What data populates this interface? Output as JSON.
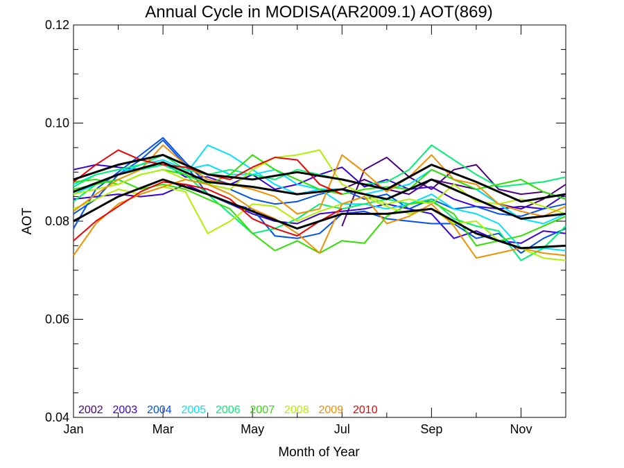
{
  "chart_data": {
    "type": "line",
    "title": "Annual Cycle in MODISA(AR2009.1) AOT(869)",
    "xlabel": "Month of Year",
    "ylabel": "AOT",
    "xlim": [
      1,
      12
    ],
    "ylim": [
      0.04,
      0.12
    ],
    "x_ticks": [
      {
        "value": 1,
        "label": "Jan"
      },
      {
        "value": 3,
        "label": "Mar"
      },
      {
        "value": 5,
        "label": "May"
      },
      {
        "value": 7,
        "label": "Jul"
      },
      {
        "value": 9,
        "label": "Sep"
      },
      {
        "value": 11,
        "label": "Nov"
      }
    ],
    "x_minor_ticks": [
      2,
      4,
      6,
      8,
      10,
      12
    ],
    "y_ticks": [
      {
        "value": 0.04,
        "label": "0.04"
      },
      {
        "value": 0.06,
        "label": "0.06"
      },
      {
        "value": 0.08,
        "label": "0.08"
      },
      {
        "value": 0.1,
        "label": "0.10"
      },
      {
        "value": 0.12,
        "label": "0.12"
      }
    ],
    "y_minor_ticks": [
      0.045,
      0.05,
      0.055,
      0.065,
      0.07,
      0.075,
      0.085,
      0.09,
      0.095,
      0.105,
      0.11,
      0.115
    ],
    "legend_position": "bottom-left",
    "series": [
      {
        "name": "2002",
        "color": "#4b0082",
        "x": [
          7,
          7.5,
          8,
          8.5,
          9,
          9.5,
          10,
          10.5,
          11,
          11.5,
          12
        ],
        "y": [
          0.079,
          0.0905,
          0.093,
          0.089,
          0.0865,
          0.0905,
          0.0915,
          0.0865,
          0.0855,
          0.086,
          0.0845
        ]
      },
      {
        "name": "2002",
        "color": "#4b0082",
        "x": [
          7,
          7.5,
          8,
          8.5,
          9,
          9.5,
          10,
          10.5,
          11,
          11.5,
          12
        ],
        "y": [
          0.0865,
          0.0885,
          0.0865,
          0.0855,
          0.0885,
          0.0875,
          0.0865,
          0.0835,
          0.0825,
          0.0845,
          0.0875
        ]
      },
      {
        "name": "2003",
        "color": "#3a00d8",
        "x": [
          1,
          1.5,
          2,
          2.5,
          3,
          3.5,
          4,
          4.5,
          5,
          5.5,
          6,
          6.5,
          7,
          7.5,
          8,
          8.5,
          9,
          9.5,
          10,
          10.5,
          11,
          11.5,
          12
        ],
        "y": [
          0.0905,
          0.0915,
          0.091,
          0.0905,
          0.092,
          0.089,
          0.089,
          0.0875,
          0.0895,
          0.0865,
          0.0875,
          0.0895,
          0.091,
          0.087,
          0.0885,
          0.0865,
          0.087,
          0.0845,
          0.083,
          0.0825,
          0.083,
          0.0825,
          0.0855
        ]
      },
      {
        "name": "2003",
        "color": "#3a00d8",
        "x": [
          1,
          1.5,
          2,
          2.5,
          3,
          3.5,
          4,
          4.5,
          5,
          5.5,
          6,
          6.5,
          7,
          7.5,
          8,
          8.5,
          9,
          9.5,
          10,
          10.5,
          11,
          11.5,
          12
        ],
        "y": [
          0.0845,
          0.085,
          0.0855,
          0.085,
          0.0855,
          0.0875,
          0.0855,
          0.0835,
          0.0815,
          0.08,
          0.0795,
          0.0815,
          0.082,
          0.0825,
          0.0835,
          0.0825,
          0.0815,
          0.0765,
          0.078,
          0.076,
          0.0755,
          0.078,
          0.0775
        ]
      },
      {
        "name": "2004",
        "color": "#0050f0",
        "x": [
          1,
          1.5,
          2,
          2.5,
          3,
          3.5,
          4,
          4.5,
          5,
          5.5,
          6,
          6.5,
          7,
          7.5,
          8,
          8.5,
          9,
          9.5,
          10,
          10.5,
          11,
          11.5,
          12
        ],
        "y": [
          0.0785,
          0.0865,
          0.09,
          0.0935,
          0.097,
          0.092,
          0.0875,
          0.0865,
          0.0845,
          0.0835,
          0.084,
          0.0855,
          0.0865,
          0.0845,
          0.0855,
          0.0825,
          0.0845,
          0.0825,
          0.083,
          0.0815,
          0.081,
          0.0825,
          0.0835
        ]
      },
      {
        "name": "2004",
        "color": "#0050f0",
        "x": [
          1,
          1.5,
          2,
          2.5,
          3,
          3.5,
          4,
          4.5,
          5,
          5.5,
          6,
          6.5,
          7,
          7.5,
          8,
          8.5,
          9,
          9.5,
          10,
          10.5,
          11,
          11.5,
          12
        ],
        "y": [
          0.0815,
          0.0845,
          0.0895,
          0.0925,
          0.0965,
          0.0915,
          0.0855,
          0.0835,
          0.0825,
          0.077,
          0.0765,
          0.0775,
          0.0815,
          0.082,
          0.0805,
          0.08,
          0.0795,
          0.0795,
          0.0765,
          0.0775,
          0.0735,
          0.0765,
          0.0785
        ]
      },
      {
        "name": "2005",
        "color": "#00e0ff",
        "x": [
          1,
          1.5,
          2,
          2.5,
          3,
          3.5,
          4,
          4.5,
          5,
          5.5,
          6,
          6.5,
          7,
          7.5,
          8,
          8.5,
          9,
          9.5,
          10,
          10.5,
          11,
          11.5,
          12
        ],
        "y": [
          0.0855,
          0.0875,
          0.0895,
          0.0915,
          0.0925,
          0.0905,
          0.0915,
          0.0895,
          0.0895,
          0.0905,
          0.0875,
          0.0865,
          0.0865,
          0.0855,
          0.0865,
          0.0875,
          0.0905,
          0.0885,
          0.0865,
          0.0835,
          0.0805,
          0.0795,
          0.0815
        ]
      },
      {
        "name": "2005",
        "color": "#00e0ff",
        "x": [
          1,
          1.5,
          2,
          2.5,
          3,
          3.5,
          4,
          4.5,
          5,
          5.5,
          6,
          6.5,
          7,
          7.5,
          8,
          8.5,
          9,
          9.5,
          10,
          10.5,
          11,
          11.5,
          12
        ],
        "y": [
          0.0875,
          0.0895,
          0.0905,
          0.0905,
          0.0915,
          0.0895,
          0.0955,
          0.0935,
          0.0905,
          0.0875,
          0.0855,
          0.0865,
          0.0835,
          0.0835,
          0.0825,
          0.0835,
          0.0855,
          0.0825,
          0.0815,
          0.0795,
          0.0745,
          0.0745,
          0.074
        ]
      },
      {
        "name": "2006",
        "color": "#00f070",
        "x": [
          1,
          1.5,
          2,
          2.5,
          3,
          3.5,
          4,
          4.5,
          5,
          5.5,
          6,
          6.5,
          7,
          7.5,
          8,
          8.5,
          9,
          9.5,
          10,
          10.5,
          11,
          11.5,
          12
        ],
        "y": [
          0.087,
          0.0895,
          0.0905,
          0.0915,
          0.0935,
          0.0905,
          0.0895,
          0.0905,
          0.0895,
          0.0885,
          0.0905,
          0.0895,
          0.0885,
          0.0875,
          0.088,
          0.0905,
          0.0955,
          0.0925,
          0.0895,
          0.087,
          0.0875,
          0.088,
          0.089
        ]
      },
      {
        "name": "2006",
        "color": "#00f070",
        "x": [
          1,
          1.5,
          2,
          2.5,
          3,
          3.5,
          4,
          4.5,
          5,
          5.5,
          6,
          6.5,
          7,
          7.5,
          8,
          8.5,
          9,
          9.5,
          10,
          10.5,
          11,
          11.5,
          12
        ],
        "y": [
          0.084,
          0.0875,
          0.0895,
          0.0905,
          0.0915,
          0.0895,
          0.0855,
          0.0815,
          0.0775,
          0.0785,
          0.0805,
          0.0835,
          0.0825,
          0.0835,
          0.0845,
          0.0835,
          0.0845,
          0.0805,
          0.079,
          0.078,
          0.072,
          0.0745,
          0.079
        ]
      },
      {
        "name": "2007",
        "color": "#30e000",
        "x": [
          1,
          1.5,
          2,
          2.5,
          3,
          3.5,
          4,
          4.5,
          5,
          5.5,
          6,
          6.5,
          7,
          7.5,
          8,
          8.5,
          9,
          9.5,
          10,
          10.5,
          11,
          11.5,
          12
        ],
        "y": [
          0.088,
          0.0885,
          0.0875,
          0.0895,
          0.0905,
          0.0895,
          0.0875,
          0.0895,
          0.0935,
          0.0905,
          0.0885,
          0.0865,
          0.0855,
          0.0865,
          0.087,
          0.0865,
          0.0905,
          0.0885,
          0.0865,
          0.0875,
          0.0885,
          0.086,
          0.0845
        ]
      },
      {
        "name": "2007",
        "color": "#30e000",
        "x": [
          1,
          1.5,
          2,
          2.5,
          3,
          3.5,
          4,
          4.5,
          5,
          5.5,
          6,
          6.5,
          7,
          7.5,
          8,
          8.5,
          9,
          9.5,
          10,
          10.5,
          11,
          11.5,
          12
        ],
        "y": [
          0.0865,
          0.0875,
          0.0885,
          0.0865,
          0.0875,
          0.0865,
          0.0845,
          0.0825,
          0.0775,
          0.074,
          0.076,
          0.0735,
          0.076,
          0.0755,
          0.081,
          0.0835,
          0.084,
          0.0815,
          0.075,
          0.076,
          0.077,
          0.079,
          0.081
        ]
      },
      {
        "name": "2008",
        "color": "#b0f000",
        "x": [
          1,
          1.5,
          2,
          2.5,
          3,
          3.5,
          4,
          4.5,
          5,
          5.5,
          6,
          6.5,
          7,
          7.5,
          8,
          8.5,
          9,
          9.5,
          10,
          10.5,
          11,
          11.5,
          12
        ],
        "y": [
          0.0855,
          0.0865,
          0.0875,
          0.0895,
          0.0905,
          0.0885,
          0.0875,
          0.0865,
          0.0905,
          0.093,
          0.0935,
          0.0945,
          0.0875,
          0.0855,
          0.0835,
          0.0845,
          0.0835,
          0.0875,
          0.084,
          0.0835,
          0.0845,
          0.083,
          0.0815
        ]
      },
      {
        "name": "2008",
        "color": "#b0f000",
        "x": [
          1,
          1.5,
          2,
          2.5,
          3,
          3.5,
          4,
          4.5,
          5,
          5.5,
          6,
          6.5,
          7,
          7.5,
          8,
          8.5,
          9,
          9.5,
          10,
          10.5,
          11,
          11.5,
          12
        ],
        "y": [
          0.0825,
          0.0845,
          0.0865,
          0.0855,
          0.087,
          0.086,
          0.0775,
          0.08,
          0.0835,
          0.083,
          0.08,
          0.082,
          0.0835,
          0.085,
          0.083,
          0.0815,
          0.0825,
          0.0795,
          0.08,
          0.076,
          0.0745,
          0.0725,
          0.072
        ]
      },
      {
        "name": "2009",
        "color": "#f09000",
        "x": [
          1,
          1.5,
          2,
          2.5,
          3,
          3.5,
          4,
          4.5,
          5,
          5.5,
          6,
          6.5,
          7,
          7.5,
          8,
          8.5,
          9,
          9.5,
          10,
          10.5,
          11,
          11.5,
          12
        ],
        "y": [
          0.082,
          0.0855,
          0.0885,
          0.0905,
          0.0955,
          0.0915,
          0.0885,
          0.0875,
          0.0865,
          0.085,
          0.0815,
          0.0825,
          0.0935,
          0.09,
          0.086,
          0.089,
          0.0935,
          0.0885,
          0.0875,
          0.0835,
          0.082,
          0.081,
          0.083
        ]
      },
      {
        "name": "2009",
        "color": "#f09000",
        "x": [
          1,
          1.5,
          2,
          2.5,
          3,
          3.5,
          4,
          4.5,
          5,
          5.5,
          6,
          6.5,
          7,
          7.5,
          8,
          8.5,
          9,
          9.5,
          10,
          10.5,
          11,
          11.5,
          12
        ],
        "y": [
          0.073,
          0.0795,
          0.0835,
          0.0855,
          0.087,
          0.0885,
          0.0875,
          0.0855,
          0.0825,
          0.0805,
          0.0775,
          0.0735,
          0.0835,
          0.085,
          0.0795,
          0.081,
          0.0835,
          0.079,
          0.0725,
          0.0735,
          0.0745,
          0.0735,
          0.073
        ]
      },
      {
        "name": "2010",
        "color": "#f00000",
        "x": [
          1,
          1.5,
          2,
          2.5,
          3,
          3.5,
          4,
          4.5,
          5,
          5.5,
          6,
          6.5,
          7
        ],
        "y": [
          0.088,
          0.0915,
          0.0945,
          0.0925,
          0.0915,
          0.091,
          0.0895,
          0.0885,
          0.091,
          0.093,
          0.0925,
          0.0875,
          0.0855
        ]
      },
      {
        "name": "2010",
        "color": "#f00000",
        "x": [
          1,
          1.5,
          2,
          2.5,
          3,
          3.5,
          4,
          4.5,
          5,
          5.5,
          6,
          6.5,
          7
        ],
        "y": [
          0.076,
          0.08,
          0.083,
          0.086,
          0.088,
          0.0875,
          0.0865,
          0.0845,
          0.0805,
          0.0785,
          0.077,
          0.08,
          0.0825
        ]
      },
      {
        "color": "#000000",
        "bold": true,
        "x": [
          1,
          2,
          3,
          4,
          5,
          6,
          7,
          8,
          9,
          10,
          11,
          12
        ],
        "y": [
          0.0885,
          0.0915,
          0.0935,
          0.0895,
          0.0885,
          0.09,
          0.0885,
          0.0865,
          0.0915,
          0.088,
          0.084,
          0.0855
        ]
      },
      {
        "color": "#000000",
        "bold": true,
        "x": [
          1,
          2,
          3,
          4,
          5,
          6,
          7,
          8,
          9,
          10,
          11,
          12
        ],
        "y": [
          0.086,
          0.0895,
          0.092,
          0.088,
          0.087,
          0.0855,
          0.0865,
          0.0845,
          0.0885,
          0.0845,
          0.0805,
          0.0815
        ]
      },
      {
        "color": "#000000",
        "bold": true,
        "x": [
          1,
          2,
          3,
          4,
          5,
          6,
          7,
          8,
          9,
          10,
          11,
          12
        ],
        "y": [
          0.08,
          0.085,
          0.0885,
          0.0855,
          0.082,
          0.0785,
          0.0815,
          0.0815,
          0.0825,
          0.0775,
          0.0745,
          0.075
        ]
      }
    ],
    "legend": [
      {
        "label": "2002",
        "color": "#4b0082"
      },
      {
        "label": "2003",
        "color": "#3a00d8"
      },
      {
        "label": "2004",
        "color": "#0050f0"
      },
      {
        "label": "2005",
        "color": "#00e0ff"
      },
      {
        "label": "2006",
        "color": "#00f070"
      },
      {
        "label": "2007",
        "color": "#30e000"
      },
      {
        "label": "2008",
        "color": "#b0f000"
      },
      {
        "label": "2009",
        "color": "#f09000"
      },
      {
        "label": "2010",
        "color": "#f00000"
      }
    ]
  }
}
